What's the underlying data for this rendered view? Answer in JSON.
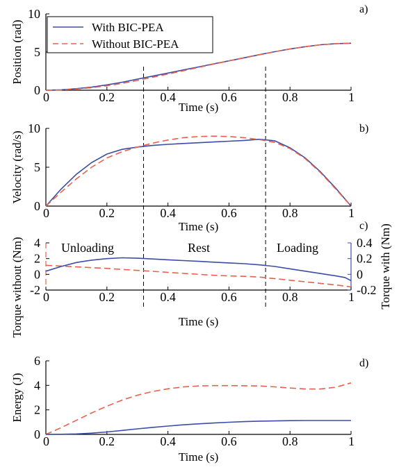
{
  "colors": {
    "with": "#3b4ba8",
    "without": "#e8604a",
    "axis": "#000000"
  },
  "legend": {
    "with_label": "With BIC-PEA",
    "without_label": "Without BIC-PEA"
  },
  "region_labels": {
    "unloading": "Unloading",
    "rest": "Rest",
    "loading": "Loading"
  },
  "dividers_x": [
    0.32,
    0.72
  ],
  "chart_data": [
    {
      "panel": "a)",
      "type": "line",
      "xlabel": "Time (s)",
      "ylabel": "Position (rad)",
      "xlim": [
        0,
        1
      ],
      "ylim": [
        0,
        10
      ],
      "xticks": [
        0,
        0.2,
        0.4,
        0.6,
        0.8,
        1
      ],
      "xtick_labels": [
        "0",
        "0.2",
        "0.4",
        "0.6",
        "0.8",
        "1"
      ],
      "yticks": [
        0,
        5,
        10
      ],
      "ytick_labels": [
        "0",
        "5",
        "10"
      ],
      "legend": "top-left",
      "series": [
        {
          "name": "With BIC-PEA",
          "key": "with",
          "style": "solid",
          "x": [
            0,
            0.05,
            0.1,
            0.15,
            0.2,
            0.25,
            0.3,
            0.35,
            0.4,
            0.45,
            0.5,
            0.55,
            0.6,
            0.65,
            0.7,
            0.75,
            0.8,
            0.85,
            0.9,
            0.95,
            1
          ],
          "y": [
            0,
            0.05,
            0.2,
            0.4,
            0.7,
            1.05,
            1.45,
            1.85,
            2.25,
            2.65,
            3.05,
            3.45,
            3.85,
            4.25,
            4.65,
            5.05,
            5.4,
            5.7,
            5.95,
            6.1,
            6.15
          ]
        },
        {
          "name": "Without BIC-PEA",
          "key": "without",
          "style": "dashed",
          "x": [
            0,
            0.05,
            0.1,
            0.15,
            0.2,
            0.25,
            0.3,
            0.35,
            0.4,
            0.45,
            0.5,
            0.55,
            0.6,
            0.65,
            0.7,
            0.75,
            0.8,
            0.85,
            0.9,
            0.95,
            1
          ],
          "y": [
            0,
            0.04,
            0.15,
            0.33,
            0.58,
            0.9,
            1.28,
            1.7,
            2.12,
            2.55,
            2.98,
            3.42,
            3.85,
            4.27,
            4.67,
            5.05,
            5.4,
            5.7,
            5.95,
            6.1,
            6.15
          ]
        }
      ]
    },
    {
      "panel": "b)",
      "type": "line",
      "xlabel": "Time (s)",
      "ylabel": "Velocity (rad/s)",
      "xlim": [
        0,
        1
      ],
      "ylim": [
        0,
        10
      ],
      "xticks": [
        0,
        0.2,
        0.4,
        0.6,
        0.8,
        1
      ],
      "xtick_labels": [
        "0",
        "0.2",
        "0.4",
        "0.6",
        "0.8",
        "1"
      ],
      "yticks": [
        0,
        5,
        10
      ],
      "ytick_labels": [
        "0",
        "5",
        "10"
      ],
      "series": [
        {
          "name": "With BIC-PEA",
          "key": "with",
          "style": "solid",
          "x": [
            0,
            0.05,
            0.1,
            0.15,
            0.2,
            0.25,
            0.3,
            0.35,
            0.4,
            0.45,
            0.5,
            0.55,
            0.6,
            0.65,
            0.7,
            0.75,
            0.8,
            0.85,
            0.9,
            0.95,
            1
          ],
          "y": [
            0,
            2.2,
            4.1,
            5.6,
            6.7,
            7.3,
            7.6,
            7.8,
            7.95,
            8.05,
            8.15,
            8.25,
            8.35,
            8.45,
            8.6,
            8.4,
            7.5,
            6.2,
            4.4,
            2.3,
            0
          ]
        },
        {
          "name": "Without BIC-PEA",
          "key": "without",
          "style": "dashed",
          "x": [
            0,
            0.05,
            0.1,
            0.15,
            0.2,
            0.25,
            0.3,
            0.35,
            0.4,
            0.45,
            0.5,
            0.55,
            0.6,
            0.65,
            0.7,
            0.75,
            0.8,
            0.85,
            0.9,
            0.95,
            1
          ],
          "y": [
            0,
            1.8,
            3.5,
            5.0,
            6.2,
            7.0,
            7.6,
            8.1,
            8.5,
            8.8,
            8.95,
            9.0,
            8.95,
            8.8,
            8.55,
            8.2,
            7.4,
            6.1,
            4.3,
            2.2,
            0
          ]
        }
      ]
    },
    {
      "panel": "c)",
      "type": "line",
      "xlabel": "Time (s)",
      "ylabel": "Torque without (Nm)",
      "ylabel_right": "Torque with (Nm)",
      "xlim": [
        0,
        1
      ],
      "ylim": [
        -2,
        4
      ],
      "ylim_right": [
        -0.2,
        0.4
      ],
      "xticks": [
        0,
        0.2,
        0.4,
        0.6,
        0.8,
        1
      ],
      "xtick_labels": [
        "0",
        "0.2",
        "0.4",
        "0.6",
        "0.8",
        "1"
      ],
      "yticks": [
        -2,
        0,
        2,
        4
      ],
      "ytick_labels": [
        "-2",
        "0",
        "2",
        "4"
      ],
      "yticks_right": [
        -0.2,
        0,
        0.2,
        0.4
      ],
      "ytick_labels_right": [
        "-0.2",
        "0",
        "0.2",
        "0.4"
      ],
      "series": [
        {
          "name": "Without BIC-PEA",
          "key": "without",
          "style": "dashed",
          "axis": "left",
          "x": [
            0,
            0.05,
            0.1,
            0.15,
            0.2,
            0.25,
            0.3,
            0.35,
            0.4,
            0.45,
            0.5,
            0.55,
            0.6,
            0.65,
            0.7,
            0.75,
            0.8,
            0.85,
            0.9,
            0.95,
            1
          ],
          "y": [
            1.15,
            1.05,
            0.95,
            0.85,
            0.75,
            0.62,
            0.5,
            0.38,
            0.25,
            0.12,
            0.0,
            -0.12,
            -0.2,
            -0.25,
            -0.35,
            -0.55,
            -0.75,
            -0.95,
            -1.15,
            -1.35,
            -1.6
          ]
        },
        {
          "name": "With BIC-PEA",
          "key": "with",
          "style": "solid",
          "axis": "right",
          "x": [
            0,
            0.05,
            0.1,
            0.15,
            0.2,
            0.25,
            0.3,
            0.35,
            0.4,
            0.45,
            0.5,
            0.55,
            0.6,
            0.65,
            0.7,
            0.75,
            0.8,
            0.85,
            0.9,
            0.95,
            0.98,
            1
          ],
          "y": [
            0.04,
            0.1,
            0.15,
            0.18,
            0.2,
            0.21,
            0.205,
            0.195,
            0.185,
            0.175,
            0.165,
            0.155,
            0.145,
            0.135,
            0.12,
            0.1,
            0.07,
            0.04,
            0.01,
            -0.02,
            -0.04,
            -0.08
          ]
        }
      ]
    },
    {
      "panel": "d)",
      "type": "line",
      "xlabel": "Time (s)",
      "ylabel": "Energy (J)",
      "xlim": [
        0,
        1
      ],
      "ylim": [
        0,
        6
      ],
      "xticks": [
        0,
        0.2,
        0.4,
        0.6,
        0.8,
        1
      ],
      "xtick_labels": [
        "0",
        "0.2",
        "0.4",
        "0.6",
        "0.8",
        "1"
      ],
      "yticks": [
        0,
        2,
        4,
        6
      ],
      "ytick_labels": [
        "0",
        "2",
        "4",
        "6"
      ],
      "series": [
        {
          "name": "Without BIC-PEA",
          "key": "without",
          "style": "dashed",
          "x": [
            0,
            0.05,
            0.1,
            0.15,
            0.2,
            0.25,
            0.3,
            0.35,
            0.4,
            0.45,
            0.5,
            0.55,
            0.6,
            0.65,
            0.7,
            0.75,
            0.8,
            0.85,
            0.9,
            0.95,
            1
          ],
          "y": [
            0,
            0.55,
            1.15,
            1.75,
            2.3,
            2.8,
            3.2,
            3.5,
            3.72,
            3.87,
            3.95,
            3.98,
            3.98,
            3.97,
            3.95,
            3.88,
            3.78,
            3.7,
            3.7,
            3.85,
            4.2
          ]
        },
        {
          "name": "With BIC-PEA",
          "key": "with",
          "style": "solid",
          "x": [
            0,
            0.05,
            0.1,
            0.15,
            0.2,
            0.25,
            0.3,
            0.35,
            0.4,
            0.45,
            0.5,
            0.55,
            0.6,
            0.65,
            0.7,
            0.75,
            0.8,
            0.85,
            0.9,
            0.95,
            1
          ],
          "y": [
            0,
            0.01,
            0.04,
            0.1,
            0.2,
            0.32,
            0.45,
            0.57,
            0.68,
            0.78,
            0.86,
            0.93,
            0.99,
            1.04,
            1.08,
            1.1,
            1.12,
            1.13,
            1.13,
            1.13,
            1.13
          ]
        }
      ]
    }
  ]
}
